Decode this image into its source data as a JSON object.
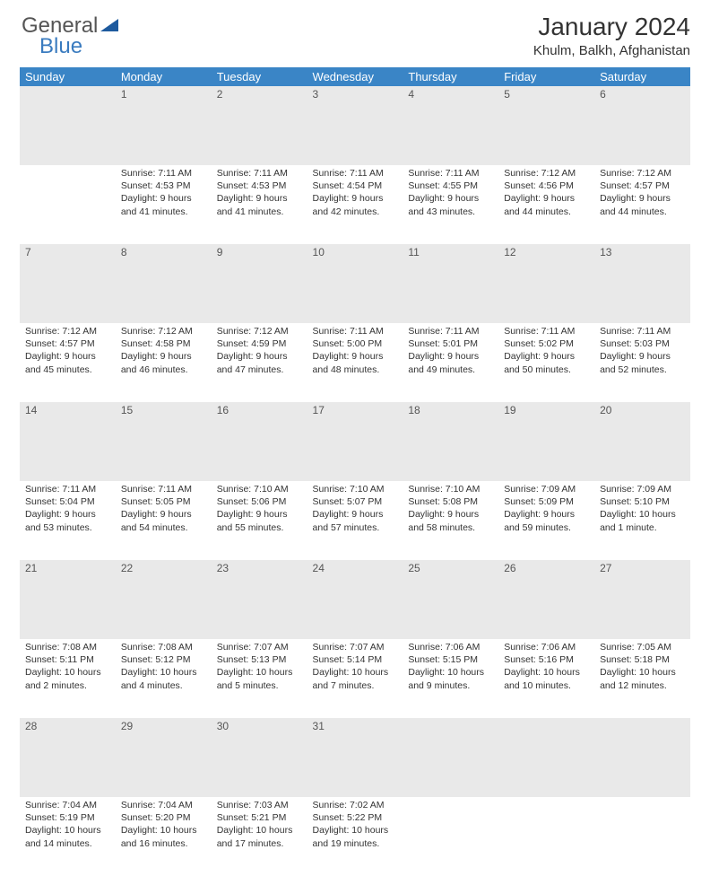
{
  "logo": {
    "text1": "General",
    "text2": "Blue"
  },
  "title": "January 2024",
  "subtitle": "Khulm, Balkh, Afghanistan",
  "days_of_week": [
    "Sunday",
    "Monday",
    "Tuesday",
    "Wednesday",
    "Thursday",
    "Friday",
    "Saturday"
  ],
  "colors": {
    "header_bg": "#3a85c6",
    "header_text": "#ffffff",
    "daynum_bg": "#e9e9e9",
    "row_border": "#3a85c6",
    "body_text": "#333333",
    "logo_gray": "#555555",
    "logo_blue": "#3a7bbf"
  },
  "typography": {
    "title_fontsize": 28,
    "subtitle_fontsize": 15,
    "dayhead_fontsize": 13,
    "daynum_fontsize": 12,
    "body_fontsize": 10.5
  },
  "weeks": [
    [
      null,
      {
        "n": "1",
        "sunrise": "Sunrise: 7:11 AM",
        "sunset": "Sunset: 4:53 PM",
        "daylight": "Daylight: 9 hours and 41 minutes."
      },
      {
        "n": "2",
        "sunrise": "Sunrise: 7:11 AM",
        "sunset": "Sunset: 4:53 PM",
        "daylight": "Daylight: 9 hours and 41 minutes."
      },
      {
        "n": "3",
        "sunrise": "Sunrise: 7:11 AM",
        "sunset": "Sunset: 4:54 PM",
        "daylight": "Daylight: 9 hours and 42 minutes."
      },
      {
        "n": "4",
        "sunrise": "Sunrise: 7:11 AM",
        "sunset": "Sunset: 4:55 PM",
        "daylight": "Daylight: 9 hours and 43 minutes."
      },
      {
        "n": "5",
        "sunrise": "Sunrise: 7:12 AM",
        "sunset": "Sunset: 4:56 PM",
        "daylight": "Daylight: 9 hours and 44 minutes."
      },
      {
        "n": "6",
        "sunrise": "Sunrise: 7:12 AM",
        "sunset": "Sunset: 4:57 PM",
        "daylight": "Daylight: 9 hours and 44 minutes."
      }
    ],
    [
      {
        "n": "7",
        "sunrise": "Sunrise: 7:12 AM",
        "sunset": "Sunset: 4:57 PM",
        "daylight": "Daylight: 9 hours and 45 minutes."
      },
      {
        "n": "8",
        "sunrise": "Sunrise: 7:12 AM",
        "sunset": "Sunset: 4:58 PM",
        "daylight": "Daylight: 9 hours and 46 minutes."
      },
      {
        "n": "9",
        "sunrise": "Sunrise: 7:12 AM",
        "sunset": "Sunset: 4:59 PM",
        "daylight": "Daylight: 9 hours and 47 minutes."
      },
      {
        "n": "10",
        "sunrise": "Sunrise: 7:11 AM",
        "sunset": "Sunset: 5:00 PM",
        "daylight": "Daylight: 9 hours and 48 minutes."
      },
      {
        "n": "11",
        "sunrise": "Sunrise: 7:11 AM",
        "sunset": "Sunset: 5:01 PM",
        "daylight": "Daylight: 9 hours and 49 minutes."
      },
      {
        "n": "12",
        "sunrise": "Sunrise: 7:11 AM",
        "sunset": "Sunset: 5:02 PM",
        "daylight": "Daylight: 9 hours and 50 minutes."
      },
      {
        "n": "13",
        "sunrise": "Sunrise: 7:11 AM",
        "sunset": "Sunset: 5:03 PM",
        "daylight": "Daylight: 9 hours and 52 minutes."
      }
    ],
    [
      {
        "n": "14",
        "sunrise": "Sunrise: 7:11 AM",
        "sunset": "Sunset: 5:04 PM",
        "daylight": "Daylight: 9 hours and 53 minutes."
      },
      {
        "n": "15",
        "sunrise": "Sunrise: 7:11 AM",
        "sunset": "Sunset: 5:05 PM",
        "daylight": "Daylight: 9 hours and 54 minutes."
      },
      {
        "n": "16",
        "sunrise": "Sunrise: 7:10 AM",
        "sunset": "Sunset: 5:06 PM",
        "daylight": "Daylight: 9 hours and 55 minutes."
      },
      {
        "n": "17",
        "sunrise": "Sunrise: 7:10 AM",
        "sunset": "Sunset: 5:07 PM",
        "daylight": "Daylight: 9 hours and 57 minutes."
      },
      {
        "n": "18",
        "sunrise": "Sunrise: 7:10 AM",
        "sunset": "Sunset: 5:08 PM",
        "daylight": "Daylight: 9 hours and 58 minutes."
      },
      {
        "n": "19",
        "sunrise": "Sunrise: 7:09 AM",
        "sunset": "Sunset: 5:09 PM",
        "daylight": "Daylight: 9 hours and 59 minutes."
      },
      {
        "n": "20",
        "sunrise": "Sunrise: 7:09 AM",
        "sunset": "Sunset: 5:10 PM",
        "daylight": "Daylight: 10 hours and 1 minute."
      }
    ],
    [
      {
        "n": "21",
        "sunrise": "Sunrise: 7:08 AM",
        "sunset": "Sunset: 5:11 PM",
        "daylight": "Daylight: 10 hours and 2 minutes."
      },
      {
        "n": "22",
        "sunrise": "Sunrise: 7:08 AM",
        "sunset": "Sunset: 5:12 PM",
        "daylight": "Daylight: 10 hours and 4 minutes."
      },
      {
        "n": "23",
        "sunrise": "Sunrise: 7:07 AM",
        "sunset": "Sunset: 5:13 PM",
        "daylight": "Daylight: 10 hours and 5 minutes."
      },
      {
        "n": "24",
        "sunrise": "Sunrise: 7:07 AM",
        "sunset": "Sunset: 5:14 PM",
        "daylight": "Daylight: 10 hours and 7 minutes."
      },
      {
        "n": "25",
        "sunrise": "Sunrise: 7:06 AM",
        "sunset": "Sunset: 5:15 PM",
        "daylight": "Daylight: 10 hours and 9 minutes."
      },
      {
        "n": "26",
        "sunrise": "Sunrise: 7:06 AM",
        "sunset": "Sunset: 5:16 PM",
        "daylight": "Daylight: 10 hours and 10 minutes."
      },
      {
        "n": "27",
        "sunrise": "Sunrise: 7:05 AM",
        "sunset": "Sunset: 5:18 PM",
        "daylight": "Daylight: 10 hours and 12 minutes."
      }
    ],
    [
      {
        "n": "28",
        "sunrise": "Sunrise: 7:04 AM",
        "sunset": "Sunset: 5:19 PM",
        "daylight": "Daylight: 10 hours and 14 minutes."
      },
      {
        "n": "29",
        "sunrise": "Sunrise: 7:04 AM",
        "sunset": "Sunset: 5:20 PM",
        "daylight": "Daylight: 10 hours and 16 minutes."
      },
      {
        "n": "30",
        "sunrise": "Sunrise: 7:03 AM",
        "sunset": "Sunset: 5:21 PM",
        "daylight": "Daylight: 10 hours and 17 minutes."
      },
      {
        "n": "31",
        "sunrise": "Sunrise: 7:02 AM",
        "sunset": "Sunset: 5:22 PM",
        "daylight": "Daylight: 10 hours and 19 minutes."
      },
      null,
      null,
      null
    ]
  ]
}
